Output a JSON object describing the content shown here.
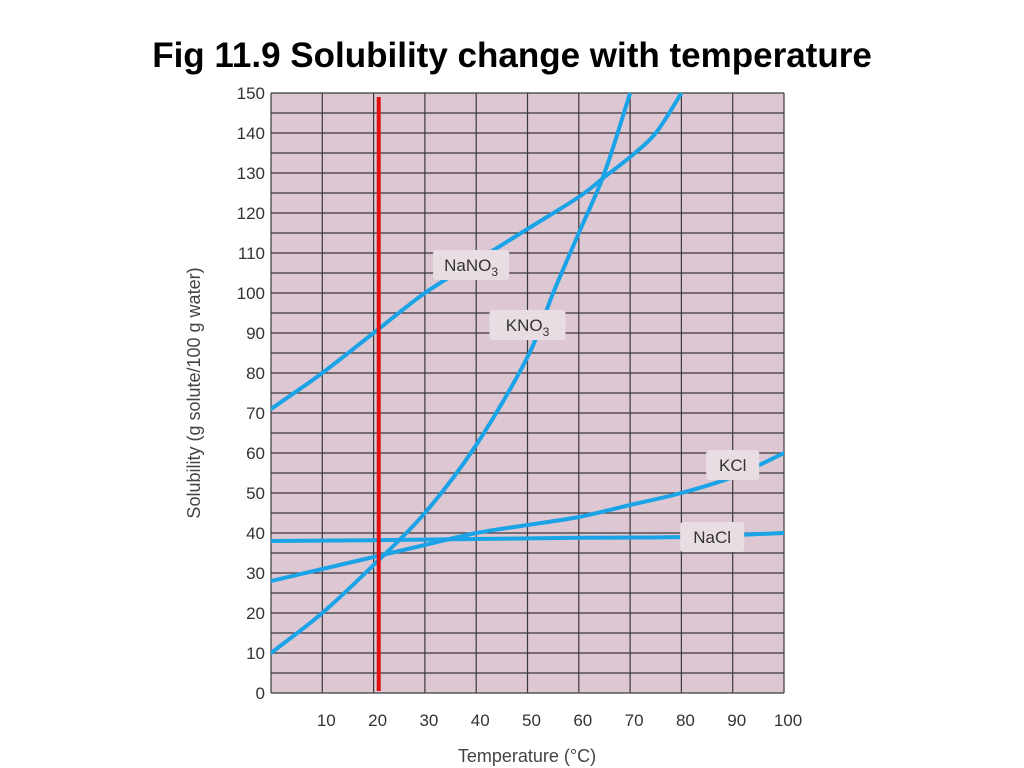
{
  "title": "Fig 11.9  Solubility change with temperature",
  "colors": {
    "plot_bg": "#dcc7d3",
    "grid": "#3a3a3a",
    "series": "#1aa3e6",
    "marker": "#e01010",
    "label_bg": "#e8dde3"
  },
  "chart_data": {
    "type": "line",
    "title": "Fig 11.9  Solubility change with temperature",
    "xlabel": "Temperature (°C)",
    "ylabel": "Solubility (g solute/100 g water)",
    "xlim": [
      0,
      100
    ],
    "ylim": [
      0,
      150
    ],
    "x_ticks": [
      10,
      20,
      30,
      40,
      50,
      60,
      70,
      80,
      90,
      100
    ],
    "y_ticks": [
      0,
      10,
      20,
      30,
      40,
      50,
      60,
      70,
      80,
      90,
      100,
      110,
      120,
      130,
      140,
      150
    ],
    "grid": true,
    "vertical_marker": {
      "x": 21,
      "color": "#e01010"
    },
    "series": [
      {
        "name": "NaNO3",
        "label_main": "NaNO",
        "label_sub": "3",
        "label_at": [
          39,
          107
        ],
        "x": [
          0,
          10,
          20,
          30,
          40,
          50,
          60,
          65,
          70,
          75,
          80
        ],
        "y": [
          71,
          80,
          90,
          100,
          108,
          116,
          124,
          129,
          134,
          140,
          150
        ]
      },
      {
        "name": "KNO3",
        "label_main": "KNO",
        "label_sub": "3",
        "label_at": [
          50,
          92
        ],
        "x": [
          0,
          10,
          20,
          30,
          40,
          50,
          55,
          60,
          65,
          70
        ],
        "y": [
          10,
          20,
          32,
          45,
          62,
          84,
          100,
          115,
          130,
          150
        ]
      },
      {
        "name": "KCl",
        "label_main": "KCl",
        "label_sub": "",
        "label_at": [
          90,
          57
        ],
        "x": [
          0,
          10,
          20,
          30,
          40,
          50,
          60,
          70,
          80,
          90,
          100
        ],
        "y": [
          28,
          31,
          34,
          37,
          40,
          42,
          44,
          47,
          50,
          54,
          60
        ]
      },
      {
        "name": "NaCl",
        "label_main": "NaCl",
        "label_sub": "",
        "label_at": [
          86,
          39
        ],
        "x": [
          0,
          20,
          40,
          60,
          80,
          100
        ],
        "y": [
          38,
          38.2,
          38.5,
          38.8,
          39,
          40
        ]
      }
    ]
  }
}
